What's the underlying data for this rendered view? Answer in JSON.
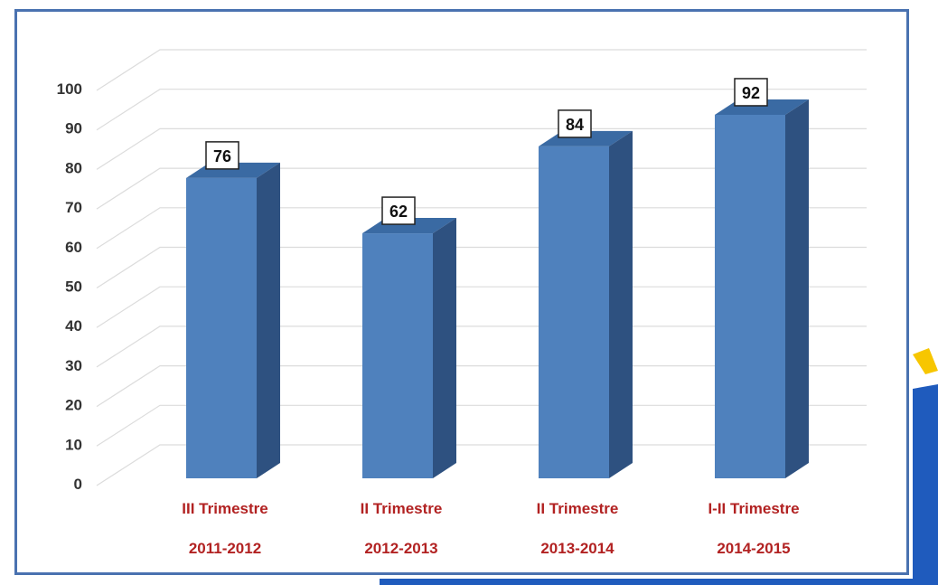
{
  "chart_data": {
    "type": "bar",
    "categories": [
      [
        "III Trimestre",
        "2011-2012"
      ],
      [
        "II Trimestre",
        "2012-2013"
      ],
      [
        "II Trimestre",
        "2013-2014"
      ],
      [
        "I-II Trimestre",
        "2014-2015"
      ]
    ],
    "values": [
      76,
      62,
      84,
      92
    ],
    "ylim": [
      0,
      100
    ],
    "yticks": [
      0,
      10,
      20,
      30,
      40,
      50,
      60,
      70,
      80,
      90,
      100
    ],
    "grid": true,
    "three_d": true,
    "data_labels": true,
    "title": "",
    "xlabel": "",
    "ylabel": ""
  },
  "colors": {
    "bar_front": "#4f81bd",
    "bar_side": "#2e5180",
    "bar_top": "#3a6aa3",
    "category_text": "#b22222",
    "frame": "#4a72b0",
    "accent_yellow": "#f7c600",
    "accent_blue": "#1f5bbd"
  }
}
